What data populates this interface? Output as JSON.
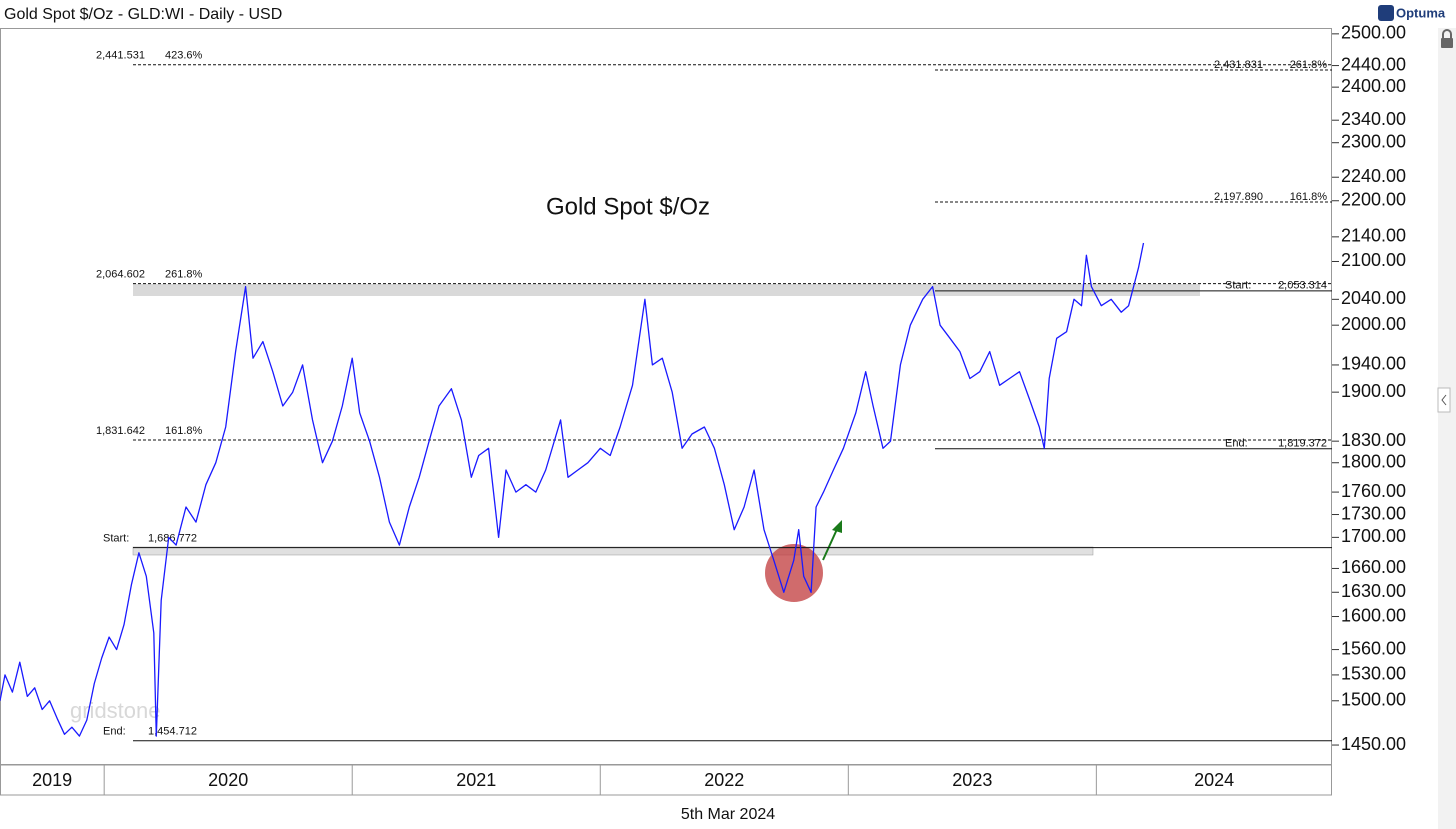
{
  "header": {
    "title": "Gold Spot $/Oz - GLD:WI - Daily - USD",
    "brand": "Optuma"
  },
  "chart_data": {
    "type": "line",
    "title": "Gold Spot $/Oz",
    "date_label": "5th Mar 2024",
    "watermark": "gridstone",
    "log_scale": true,
    "xlim": [
      2019.58,
      2024.95
    ],
    "xticks": [
      2019,
      2020,
      2021,
      2022,
      2023,
      2024
    ],
    "ylim": [
      1428,
      2517
    ],
    "yticks": [
      {
        "value": 2500,
        "label": "2500.00"
      },
      {
        "value": 2440,
        "label": "2440.00"
      },
      {
        "value": 2400,
        "label": "2400.00"
      },
      {
        "value": 2340,
        "label": "2340.00"
      },
      {
        "value": 2300,
        "label": "2300.00"
      },
      {
        "value": 2240,
        "label": "2240.00"
      },
      {
        "value": 2200,
        "label": "2200.00"
      },
      {
        "value": 2140,
        "label": "2140.00"
      },
      {
        "value": 2100,
        "label": "2100.00"
      },
      {
        "value": 2040,
        "label": "2040.00"
      },
      {
        "value": 2000,
        "label": "2000.00"
      },
      {
        "value": 1940,
        "label": "1940.00"
      },
      {
        "value": 1900,
        "label": "1900.00"
      },
      {
        "value": 1830,
        "label": "1830.00"
      },
      {
        "value": 1800,
        "label": "1800.00"
      },
      {
        "value": 1760,
        "label": "1760.00"
      },
      {
        "value": 1730,
        "label": "1730.00"
      },
      {
        "value": 1700,
        "label": "1700.00"
      },
      {
        "value": 1660,
        "label": "1660.00"
      },
      {
        "value": 1630,
        "label": "1630.00"
      },
      {
        "value": 1600,
        "label": "1600.00"
      },
      {
        "value": 1560,
        "label": "1560.00"
      },
      {
        "value": 1530,
        "label": "1530.00"
      },
      {
        "value": 1500,
        "label": "1500.00"
      },
      {
        "value": 1450,
        "label": "1450.00"
      }
    ],
    "x": [
      2019.58,
      2019.6,
      2019.63,
      2019.66,
      2019.69,
      2019.72,
      2019.75,
      2019.78,
      2019.81,
      2019.84,
      2019.87,
      2019.9,
      2019.93,
      2019.96,
      2019.99,
      2020.02,
      2020.05,
      2020.08,
      2020.11,
      2020.14,
      2020.17,
      2020.2,
      2020.21,
      2020.23,
      2020.26,
      2020.29,
      2020.33,
      2020.37,
      2020.41,
      2020.45,
      2020.49,
      2020.53,
      2020.57,
      2020.6,
      2020.64,
      2020.68,
      2020.72,
      2020.76,
      2020.8,
      2020.84,
      2020.88,
      2020.92,
      2020.96,
      2021.0,
      2021.03,
      2021.07,
      2021.11,
      2021.15,
      2021.19,
      2021.23,
      2021.27,
      2021.31,
      2021.35,
      2021.4,
      2021.44,
      2021.48,
      2021.51,
      2021.55,
      2021.59,
      2021.62,
      2021.66,
      2021.7,
      2021.74,
      2021.78,
      2021.84,
      2021.87,
      2021.91,
      2021.95,
      2022.0,
      2022.04,
      2022.08,
      2022.13,
      2022.18,
      2022.21,
      2022.25,
      2022.29,
      2022.33,
      2022.37,
      2022.42,
      2022.46,
      2022.5,
      2022.54,
      2022.58,
      2022.62,
      2022.66,
      2022.7,
      2022.74,
      2022.78,
      2022.8,
      2022.82,
      2022.85,
      2022.87,
      2022.9,
      2022.94,
      2022.98,
      2023.03,
      2023.07,
      2023.1,
      2023.14,
      2023.17,
      2023.21,
      2023.25,
      2023.3,
      2023.34,
      2023.37,
      2023.41,
      2023.45,
      2023.49,
      2023.53,
      2023.57,
      2023.61,
      2023.65,
      2023.69,
      2023.73,
      2023.77,
      2023.79,
      2023.81,
      2023.84,
      2023.88,
      2023.91,
      2023.94,
      2023.96,
      2023.98,
      2024.02,
      2024.06,
      2024.1,
      2024.13,
      2024.15,
      2024.17,
      2024.19
    ],
    "series": [
      {
        "name": "Gold Spot",
        "color": "#1a1aff",
        "values": [
          1500,
          1530,
          1510,
          1545,
          1505,
          1515,
          1490,
          1500,
          1480,
          1462,
          1470,
          1460,
          1478,
          1520,
          1550,
          1575,
          1560,
          1590,
          1640,
          1680,
          1650,
          1580,
          1460,
          1620,
          1700,
          1690,
          1740,
          1720,
          1770,
          1800,
          1850,
          1960,
          2060,
          1950,
          1975,
          1930,
          1880,
          1900,
          1940,
          1860,
          1800,
          1830,
          1880,
          1950,
          1870,
          1830,
          1780,
          1720,
          1690,
          1740,
          1780,
          1830,
          1880,
          1905,
          1860,
          1780,
          1810,
          1820,
          1700,
          1790,
          1760,
          1770,
          1760,
          1790,
          1860,
          1780,
          1790,
          1800,
          1820,
          1810,
          1850,
          1910,
          2040,
          1940,
          1950,
          1900,
          1820,
          1840,
          1850,
          1820,
          1770,
          1710,
          1740,
          1790,
          1710,
          1670,
          1630,
          1670,
          1710,
          1650,
          1630,
          1740,
          1760,
          1790,
          1820,
          1870,
          1930,
          1880,
          1820,
          1830,
          1940,
          2000,
          2040,
          2060,
          2000,
          1980,
          1960,
          1920,
          1930,
          1960,
          1910,
          1920,
          1930,
          1890,
          1850,
          1820,
          1920,
          1980,
          1990,
          2040,
          2030,
          2110,
          2060,
          2030,
          2040,
          2020,
          2030,
          2060,
          2090,
          2130
        ]
      }
    ],
    "fib_left": [
      {
        "value": 2441.531,
        "label": "2,441.531",
        "ratio": "423.6%"
      },
      {
        "value": 2064.602,
        "label": "2,064.602",
        "ratio": "261.8%"
      },
      {
        "value": 1831.642,
        "label": "1,831.642",
        "ratio": "161.8%"
      },
      {
        "value": 1686.772,
        "label": "1,686.772",
        "tag": "Start:"
      },
      {
        "value": 1454.712,
        "label": "1,454.712",
        "tag": "End:"
      }
    ],
    "fib_right": [
      {
        "value": 2431.831,
        "label": "2,431.831",
        "ratio": "261.8%"
      },
      {
        "value": 2197.89,
        "label": "2,197.890",
        "ratio": "161.8%"
      },
      {
        "value": 2053.314,
        "label": "2,053.314",
        "tag": "Start:"
      },
      {
        "value": 1819.372,
        "label": "1,819.372",
        "tag": "End:"
      }
    ]
  }
}
